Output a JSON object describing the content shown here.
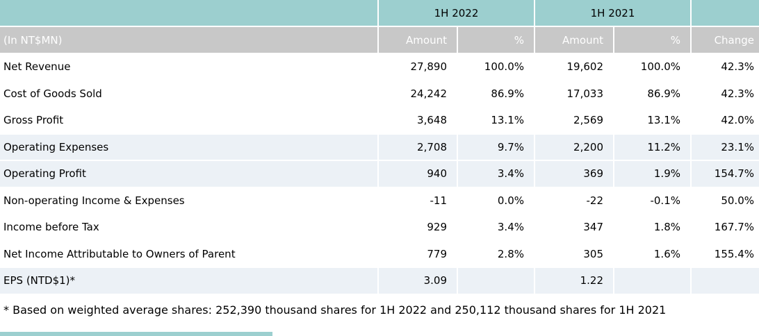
{
  "colors": {
    "teal": "#9ccfcf",
    "header_gray": "#c8c8c8",
    "row_shade": "#ecf1f6",
    "header_text": "#ffffff",
    "body_text": "#000000"
  },
  "table": {
    "unit_label": "(In NT$MN)",
    "period_headers": [
      "1H 2022",
      "1H 2021"
    ],
    "column_headers": [
      "Amount",
      "%",
      "Amount",
      "%",
      "Change"
    ],
    "rows": [
      {
        "label": "Net Revenue",
        "amount_2022": "27,890",
        "pct_2022": "100.0%",
        "amount_2021": "19,602",
        "pct_2021": "100.0%",
        "change": "42.3%",
        "shaded": false
      },
      {
        "label": "Cost of Goods Sold",
        "amount_2022": "24,242",
        "pct_2022": "86.9%",
        "amount_2021": "17,033",
        "pct_2021": "86.9%",
        "change": "42.3%",
        "shaded": false
      },
      {
        "label": "Gross Profit",
        "amount_2022": "3,648",
        "pct_2022": "13.1%",
        "amount_2021": "2,569",
        "pct_2021": "13.1%",
        "change": "42.0%",
        "shaded": false
      },
      {
        "label": "Operating Expenses",
        "amount_2022": "2,708",
        "pct_2022": "9.7%",
        "amount_2021": "2,200",
        "pct_2021": "11.2%",
        "change": "23.1%",
        "shaded": true
      },
      {
        "label": "Operating Profit",
        "amount_2022": "940",
        "pct_2022": "3.4%",
        "amount_2021": "369",
        "pct_2021": "1.9%",
        "change": "154.7%",
        "shaded": true
      },
      {
        "label": "Non-operating Income & Expenses",
        "amount_2022": "-11",
        "pct_2022": "0.0%",
        "amount_2021": "-22",
        "pct_2021": "-0.1%",
        "change": "50.0%",
        "shaded": false
      },
      {
        "label": "Income before Tax",
        "amount_2022": "929",
        "pct_2022": "3.4%",
        "amount_2021": "347",
        "pct_2021": "1.8%",
        "change": "167.7%",
        "shaded": false
      },
      {
        "label": "Net Income Attributable to Owners of Parent",
        "amount_2022": "779",
        "pct_2022": "2.8%",
        "amount_2021": "305",
        "pct_2021": "1.6%",
        "change": "155.4%",
        "shaded": false
      },
      {
        "label": "EPS (NTD$1)*",
        "amount_2022": "3.09",
        "pct_2022": "",
        "amount_2021": "1.22",
        "pct_2021": "",
        "change": "",
        "shaded": true
      }
    ],
    "footnote": "* Based on weighted average shares: 252,390 thousand shares for 1H 2022 and 250,112 thousand shares for 1H 2021"
  }
}
